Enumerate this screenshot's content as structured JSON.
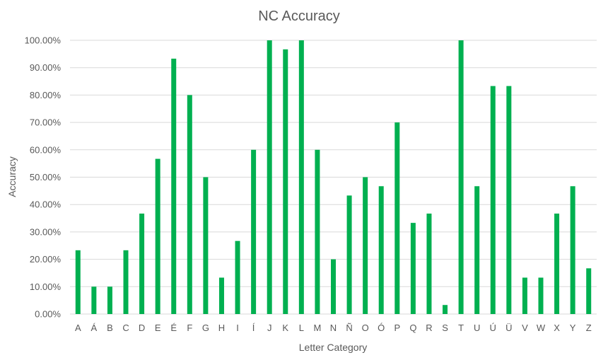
{
  "chart_data": {
    "type": "bar",
    "title": "NC Accuracy",
    "xlabel": "Letter Category",
    "ylabel": "Accuracy",
    "ylim": [
      0,
      100
    ],
    "ytick_step": 10,
    "ytick_format": "percent_2dp",
    "grid": true,
    "legend": "none",
    "categories": [
      "A",
      "Á",
      "B",
      "C",
      "D",
      "E",
      "É",
      "F",
      "G",
      "H",
      "I",
      "Í",
      "J",
      "K",
      "L",
      "M",
      "N",
      "Ñ",
      "O",
      "Ó",
      "P",
      "Q",
      "R",
      "S",
      "T",
      "U",
      "Ú",
      "Ü",
      "V",
      "W",
      "X",
      "Y",
      "Z"
    ],
    "series": [
      {
        "values": [
          23.3,
          10.0,
          10.0,
          23.3,
          36.7,
          56.7,
          93.3,
          80.0,
          50.0,
          13.3,
          26.7,
          60.0,
          100.0,
          96.7,
          100.0,
          60.0,
          20.0,
          43.3,
          50.0,
          46.7,
          70.0,
          33.3,
          36.7,
          3.3,
          100.0,
          46.7,
          83.3,
          83.3,
          13.3,
          13.3,
          36.7,
          46.7,
          16.7
        ],
        "color": "#00b050"
      }
    ]
  }
}
